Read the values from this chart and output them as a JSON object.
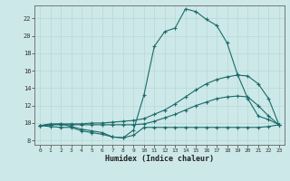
{
  "xlabel": "Humidex (Indice chaleur)",
  "ylabel": "",
  "xlim": [
    -0.5,
    23.5
  ],
  "ylim": [
    7.5,
    23.5
  ],
  "xticks": [
    0,
    1,
    2,
    3,
    4,
    5,
    6,
    7,
    8,
    9,
    10,
    11,
    12,
    13,
    14,
    15,
    16,
    17,
    18,
    19,
    20,
    21,
    22,
    23
  ],
  "yticks": [
    8,
    10,
    12,
    14,
    16,
    18,
    20,
    22
  ],
  "bg_color": "#cde8e8",
  "line_color": "#1a6b6b",
  "grid_color": "#b8d8d8",
  "curve_peak": [
    [
      0,
      9.7
    ],
    [
      1,
      9.9
    ],
    [
      2,
      9.9
    ],
    [
      3,
      9.6
    ],
    [
      4,
      9.3
    ],
    [
      5,
      9.1
    ],
    [
      6,
      8.9
    ],
    [
      7,
      8.4
    ],
    [
      8,
      8.3
    ],
    [
      9,
      9.2
    ],
    [
      10,
      13.2
    ],
    [
      11,
      18.8
    ],
    [
      12,
      20.5
    ],
    [
      13,
      20.9
    ],
    [
      14,
      23.1
    ],
    [
      15,
      22.8
    ],
    [
      16,
      21.9
    ],
    [
      17,
      21.2
    ],
    [
      18,
      19.2
    ],
    [
      19,
      15.6
    ],
    [
      20,
      12.8
    ],
    [
      21,
      10.8
    ],
    [
      22,
      10.4
    ],
    [
      23,
      9.8
    ]
  ],
  "curve_upper": [
    [
      0,
      9.7
    ],
    [
      1,
      9.8
    ],
    [
      2,
      9.9
    ],
    [
      3,
      9.9
    ],
    [
      4,
      9.9
    ],
    [
      5,
      10.0
    ],
    [
      6,
      10.0
    ],
    [
      7,
      10.1
    ],
    [
      8,
      10.2
    ],
    [
      9,
      10.3
    ],
    [
      10,
      10.5
    ],
    [
      11,
      11.0
    ],
    [
      12,
      11.5
    ],
    [
      13,
      12.2
    ],
    [
      14,
      13.0
    ],
    [
      15,
      13.8
    ],
    [
      16,
      14.5
    ],
    [
      17,
      15.0
    ],
    [
      18,
      15.3
    ],
    [
      19,
      15.5
    ],
    [
      20,
      15.4
    ],
    [
      21,
      14.5
    ],
    [
      22,
      12.8
    ],
    [
      23,
      9.8
    ]
  ],
  "curve_lower": [
    [
      0,
      9.7
    ],
    [
      1,
      9.8
    ],
    [
      2,
      9.8
    ],
    [
      3,
      9.8
    ],
    [
      4,
      9.8
    ],
    [
      5,
      9.8
    ],
    [
      6,
      9.8
    ],
    [
      7,
      9.8
    ],
    [
      8,
      9.8
    ],
    [
      9,
      9.8
    ],
    [
      10,
      9.9
    ],
    [
      11,
      10.2
    ],
    [
      12,
      10.6
    ],
    [
      13,
      11.0
    ],
    [
      14,
      11.5
    ],
    [
      15,
      12.0
    ],
    [
      16,
      12.4
    ],
    [
      17,
      12.8
    ],
    [
      18,
      13.0
    ],
    [
      19,
      13.1
    ],
    [
      20,
      13.0
    ],
    [
      21,
      12.0
    ],
    [
      22,
      10.8
    ],
    [
      23,
      9.8
    ]
  ],
  "curve_min": [
    [
      0,
      9.7
    ],
    [
      1,
      9.6
    ],
    [
      2,
      9.5
    ],
    [
      3,
      9.5
    ],
    [
      4,
      9.1
    ],
    [
      5,
      8.9
    ],
    [
      6,
      8.7
    ],
    [
      7,
      8.4
    ],
    [
      8,
      8.3
    ],
    [
      9,
      8.6
    ],
    [
      10,
      9.5
    ],
    [
      11,
      9.5
    ],
    [
      12,
      9.5
    ],
    [
      13,
      9.5
    ],
    [
      14,
      9.5
    ],
    [
      15,
      9.5
    ],
    [
      16,
      9.5
    ],
    [
      17,
      9.5
    ],
    [
      18,
      9.5
    ],
    [
      19,
      9.5
    ],
    [
      20,
      9.5
    ],
    [
      21,
      9.5
    ],
    [
      22,
      9.6
    ],
    [
      23,
      9.8
    ]
  ]
}
